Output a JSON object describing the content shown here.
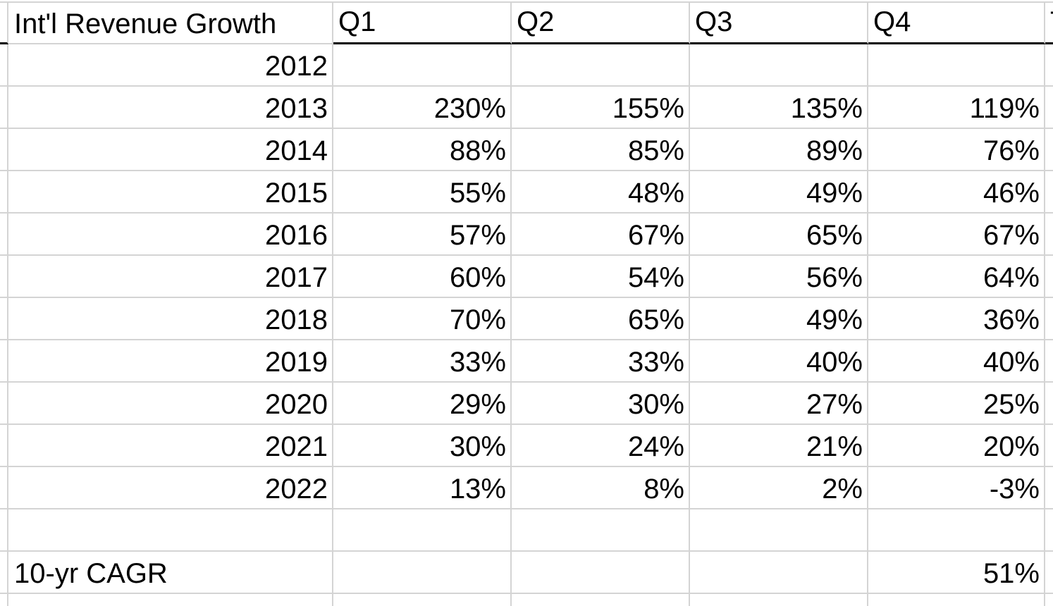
{
  "table": {
    "title": "Int'l Revenue Growth",
    "column_headers": [
      "Q1",
      "Q2",
      "Q3",
      "Q4"
    ],
    "partial_next_column_header": "T",
    "rows": [
      {
        "year": "2012",
        "q1": "",
        "q2": "",
        "q3": "",
        "q4": ""
      },
      {
        "year": "2013",
        "q1": "230%",
        "q2": "155%",
        "q3": "135%",
        "q4": "119%"
      },
      {
        "year": "2014",
        "q1": "88%",
        "q2": "85%",
        "q3": "89%",
        "q4": "76%"
      },
      {
        "year": "2015",
        "q1": "55%",
        "q2": "48%",
        "q3": "49%",
        "q4": "46%"
      },
      {
        "year": "2016",
        "q1": "57%",
        "q2": "67%",
        "q3": "65%",
        "q4": "67%"
      },
      {
        "year": "2017",
        "q1": "60%",
        "q2": "54%",
        "q3": "56%",
        "q4": "64%"
      },
      {
        "year": "2018",
        "q1": "70%",
        "q2": "65%",
        "q3": "49%",
        "q4": "36%"
      },
      {
        "year": "2019",
        "q1": "33%",
        "q2": "33%",
        "q3": "40%",
        "q4": "40%"
      },
      {
        "year": "2020",
        "q1": "29%",
        "q2": "30%",
        "q3": "27%",
        "q4": "25%"
      },
      {
        "year": "2021",
        "q1": "30%",
        "q2": "24%",
        "q3": "21%",
        "q4": "20%"
      },
      {
        "year": "2022",
        "q1": "13%",
        "q2": "8%",
        "q3": "2%",
        "q4": "-3%"
      }
    ],
    "summary_row": {
      "label": "10-yr CAGR",
      "q1": "",
      "q2": "",
      "q3": "",
      "q4": "51%"
    }
  },
  "colors": {
    "background": "#ffffff",
    "gridline": "#d4d4d4",
    "header_border": "#000000",
    "text": "#000000"
  }
}
